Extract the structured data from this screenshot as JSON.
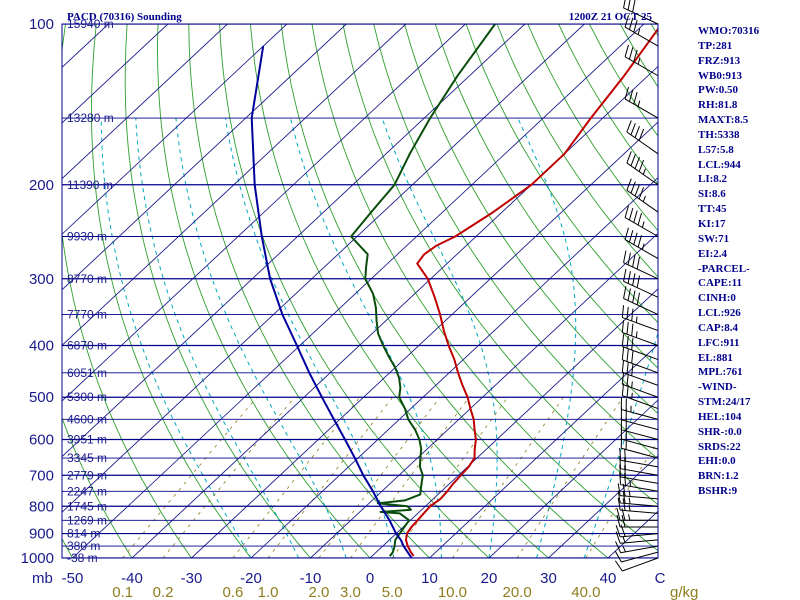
{
  "header": {
    "title": "PACD (70316) Sounding",
    "time": "1200Z 21 OCT 25"
  },
  "sidebar": [
    "WMO:70316",
    "TP:281",
    "FRZ:913",
    "WB0:913",
    "PW:0.50",
    "RH:81.8",
    "MAXT:8.5",
    "TH:5338",
    "L57:5.8",
    "LCL:944",
    "LI:8.2",
    "SI:8.6",
    "TT:45",
    "KI:17",
    "SW:71",
    "EI:2.4",
    "-PARCEL-",
    "CAPE:11",
    "CINH:0",
    "LCL:926",
    "CAP:8.4",
    "LFC:911",
    "EL:881",
    "MPL:761",
    "-WIND-",
    "STM:24/17",
    "HEL:104",
    "SHR-:0.0",
    "SRDS:22",
    "EHI:0.0",
    "BRN:1.2",
    "BSHR:9"
  ],
  "chart_data": {
    "type": "line",
    "title": "PACD (70316) Sounding",
    "subtitle": "1200Z 21 OCT 25",
    "ylabel": "mb",
    "xlabel": "C",
    "ylim": [
      1000,
      100
    ],
    "xlim": [
      -50,
      50
    ],
    "x_units_label": "C",
    "mix_units_label": "g/kg",
    "pressure_ticks": [
      100,
      200,
      300,
      400,
      500,
      600,
      700,
      800,
      900,
      1000
    ],
    "temp_ticks": [
      -50,
      -40,
      -30,
      -20,
      -10,
      0,
      10,
      20,
      30,
      40
    ],
    "temp_tick_labels": [
      "-50",
      "-40",
      "-30",
      "-20",
      "-10",
      "0",
      "10",
      "20",
      "30",
      "40"
    ],
    "mixing_ratio_labels": [
      {
        "label": "0.1",
        "value": 0.1
      },
      {
        "label": "0.2",
        "value": 0.2
      },
      {
        "label": "0.6",
        "value": 0.6
      },
      {
        "label": "1.0",
        "value": 1.0
      },
      {
        "label": "2.0",
        "value": 2.0
      },
      {
        "label": "3.0",
        "value": 3.0
      },
      {
        "label": "5.0",
        "value": 5.0
      },
      {
        "label": "10.0",
        "value": 10.0
      },
      {
        "label": "20.0",
        "value": 20.0
      },
      {
        "label": "40.0",
        "value": 40.0
      }
    ],
    "height_labels": [
      {
        "p": 100,
        "label": "15940 m"
      },
      {
        "p": 150,
        "label": "13280 m"
      },
      {
        "p": 200,
        "label": "11390 m"
      },
      {
        "p": 250,
        "label": "9930 m"
      },
      {
        "p": 300,
        "label": "8770 m"
      },
      {
        "p": 350,
        "label": "7770 m"
      },
      {
        "p": 400,
        "label": "6870 m"
      },
      {
        "p": 450,
        "label": "6051 m"
      },
      {
        "p": 500,
        "label": "5300 m"
      },
      {
        "p": 550,
        "label": "4600 m"
      },
      {
        "p": 600,
        "label": "3951 m"
      },
      {
        "p": 650,
        "label": "3345 m"
      },
      {
        "p": 700,
        "label": "2779 m"
      },
      {
        "p": 750,
        "label": "2247 m"
      },
      {
        "p": 800,
        "label": "1745 m"
      },
      {
        "p": 850,
        "label": "1269 m"
      },
      {
        "p": 900,
        "label": "814 m"
      },
      {
        "p": 950,
        "label": "380 m"
      },
      {
        "p": 1000,
        "label": "-38 m"
      }
    ],
    "series": [
      {
        "name": "Temperature",
        "color": "#c00000",
        "points": [
          [
            992,
            7.0
          ],
          [
            975,
            5.8
          ],
          [
            950,
            4.2
          ],
          [
            925,
            2.8
          ],
          [
            900,
            1.8
          ],
          [
            875,
            1.4
          ],
          [
            850,
            1.2
          ],
          [
            825,
            1.0
          ],
          [
            800,
            0.8
          ],
          [
            775,
            1.2
          ],
          [
            750,
            1.0
          ],
          [
            725,
            0.6
          ],
          [
            700,
            0.4
          ],
          [
            675,
            0.2
          ],
          [
            650,
            -0.4
          ],
          [
            625,
            -2.0
          ],
          [
            600,
            -3.5
          ],
          [
            575,
            -5.5
          ],
          [
            550,
            -7.5
          ],
          [
            525,
            -10.0
          ],
          [
            500,
            -12.5
          ],
          [
            475,
            -15.5
          ],
          [
            450,
            -18.5
          ],
          [
            425,
            -21.5
          ],
          [
            400,
            -25.0
          ],
          [
            375,
            -28.5
          ],
          [
            350,
            -32.0
          ],
          [
            325,
            -36.0
          ],
          [
            300,
            -40.5
          ],
          [
            281,
            -45.0
          ],
          [
            270,
            -45.5
          ],
          [
            260,
            -45.0
          ],
          [
            250,
            -43.5
          ],
          [
            225,
            -41.5
          ],
          [
            200,
            -40.0
          ],
          [
            175,
            -40.0
          ],
          [
            150,
            -42.0
          ],
          [
            125,
            -44.0
          ],
          [
            100,
            -47.0
          ]
        ]
      },
      {
        "name": "Dewpoint",
        "color": "#0a4d0a",
        "points": [
          [
            992,
            3.0
          ],
          [
            975,
            2.8
          ],
          [
            950,
            2.0
          ],
          [
            925,
            1.0
          ],
          [
            900,
            0.6
          ],
          [
            875,
            0.2
          ],
          [
            850,
            -0.2
          ],
          [
            825,
            -3.0
          ],
          [
            820,
            -6.5
          ],
          [
            812,
            -1.8
          ],
          [
            800,
            -3.0
          ],
          [
            790,
            -8.5
          ],
          [
            780,
            -4.5
          ],
          [
            760,
            -3.0
          ],
          [
            740,
            -4.0
          ],
          [
            720,
            -5.0
          ],
          [
            700,
            -6.0
          ],
          [
            675,
            -8.0
          ],
          [
            650,
            -9.5
          ],
          [
            625,
            -11.0
          ],
          [
            600,
            -13.0
          ],
          [
            575,
            -15.5
          ],
          [
            550,
            -18.5
          ],
          [
            525,
            -21.0
          ],
          [
            500,
            -24.0
          ],
          [
            480,
            -25.5
          ],
          [
            460,
            -27.5
          ],
          [
            440,
            -30.0
          ],
          [
            420,
            -33.0
          ],
          [
            400,
            -36.0
          ],
          [
            380,
            -39.0
          ],
          [
            360,
            -41.5
          ],
          [
            340,
            -44.0
          ],
          [
            320,
            -47.0
          ],
          [
            300,
            -51.0
          ],
          [
            285,
            -53.0
          ],
          [
            270,
            -55.0
          ],
          [
            250,
            -61.0
          ],
          [
            225,
            -62.0
          ],
          [
            200,
            -63.0
          ],
          [
            175,
            -66.0
          ],
          [
            150,
            -69.0
          ],
          [
            125,
            -72.0
          ],
          [
            100,
            -75.0
          ]
        ]
      },
      {
        "name": "Parcel",
        "color": "#00009c",
        "points": [
          [
            1000,
            7.0
          ],
          [
            950,
            3.5
          ],
          [
            926,
            2.0
          ],
          [
            900,
            0.0
          ],
          [
            850,
            -3.5
          ],
          [
            800,
            -7.5
          ],
          [
            750,
            -11.5
          ],
          [
            700,
            -16.0
          ],
          [
            650,
            -20.5
          ],
          [
            600,
            -25.5
          ],
          [
            550,
            -31.0
          ],
          [
            500,
            -37.0
          ],
          [
            450,
            -43.5
          ],
          [
            400,
            -50.5
          ],
          [
            350,
            -58.5
          ],
          [
            300,
            -67.0
          ],
          [
            250,
            -76.0
          ],
          [
            200,
            -86.5
          ],
          [
            150,
            -99.0
          ],
          [
            110,
            -110.0
          ]
        ]
      }
    ],
    "wind_barbs": [
      {
        "p": 1000,
        "dir": 250,
        "spd": 10
      },
      {
        "p": 975,
        "dir": 255,
        "spd": 10
      },
      {
        "p": 950,
        "dir": 260,
        "spd": 15
      },
      {
        "p": 925,
        "dir": 265,
        "spd": 15
      },
      {
        "p": 900,
        "dir": 265,
        "spd": 20
      },
      {
        "p": 875,
        "dir": 270,
        "spd": 20
      },
      {
        "p": 850,
        "dir": 270,
        "spd": 25
      },
      {
        "p": 825,
        "dir": 275,
        "spd": 25
      },
      {
        "p": 800,
        "dir": 275,
        "spd": 25
      },
      {
        "p": 775,
        "dir": 275,
        "spd": 25
      },
      {
        "p": 750,
        "dir": 280,
        "spd": 25
      },
      {
        "p": 725,
        "dir": 280,
        "spd": 20
      },
      {
        "p": 700,
        "dir": 280,
        "spd": 20
      },
      {
        "p": 675,
        "dir": 280,
        "spd": 20
      },
      {
        "p": 650,
        "dir": 285,
        "spd": 20
      },
      {
        "p": 625,
        "dir": 285,
        "spd": 20
      },
      {
        "p": 600,
        "dir": 285,
        "spd": 20
      },
      {
        "p": 575,
        "dir": 285,
        "spd": 20
      },
      {
        "p": 550,
        "dir": 285,
        "spd": 25
      },
      {
        "p": 525,
        "dir": 290,
        "spd": 25
      },
      {
        "p": 500,
        "dir": 290,
        "spd": 25
      },
      {
        "p": 475,
        "dir": 290,
        "spd": 30
      },
      {
        "p": 450,
        "dir": 290,
        "spd": 30
      },
      {
        "p": 425,
        "dir": 290,
        "spd": 30
      },
      {
        "p": 400,
        "dir": 290,
        "spd": 35
      },
      {
        "p": 375,
        "dir": 290,
        "spd": 35
      },
      {
        "p": 350,
        "dir": 295,
        "spd": 40
      },
      {
        "p": 325,
        "dir": 295,
        "spd": 40
      },
      {
        "p": 300,
        "dir": 295,
        "spd": 40
      },
      {
        "p": 275,
        "dir": 300,
        "spd": 45
      },
      {
        "p": 250,
        "dir": 300,
        "spd": 45
      },
      {
        "p": 225,
        "dir": 305,
        "spd": 45
      },
      {
        "p": 200,
        "dir": 305,
        "spd": 45
      },
      {
        "p": 175,
        "dir": 305,
        "spd": 40
      },
      {
        "p": 150,
        "dir": 300,
        "spd": 35
      },
      {
        "p": 125,
        "dir": 300,
        "spd": 35
      },
      {
        "p": 110,
        "dir": 300,
        "spd": 35
      },
      {
        "p": 100,
        "dir": 295,
        "spd": 30
      }
    ],
    "colors": {
      "isobars": "#00008b",
      "isotherms": "#1e1e8c",
      "dry_adiabats": "#2ea02e",
      "moist_adiabats": "#00a8c0",
      "mixing_lines": "#8f7d1e",
      "barbs": "#000000"
    }
  }
}
